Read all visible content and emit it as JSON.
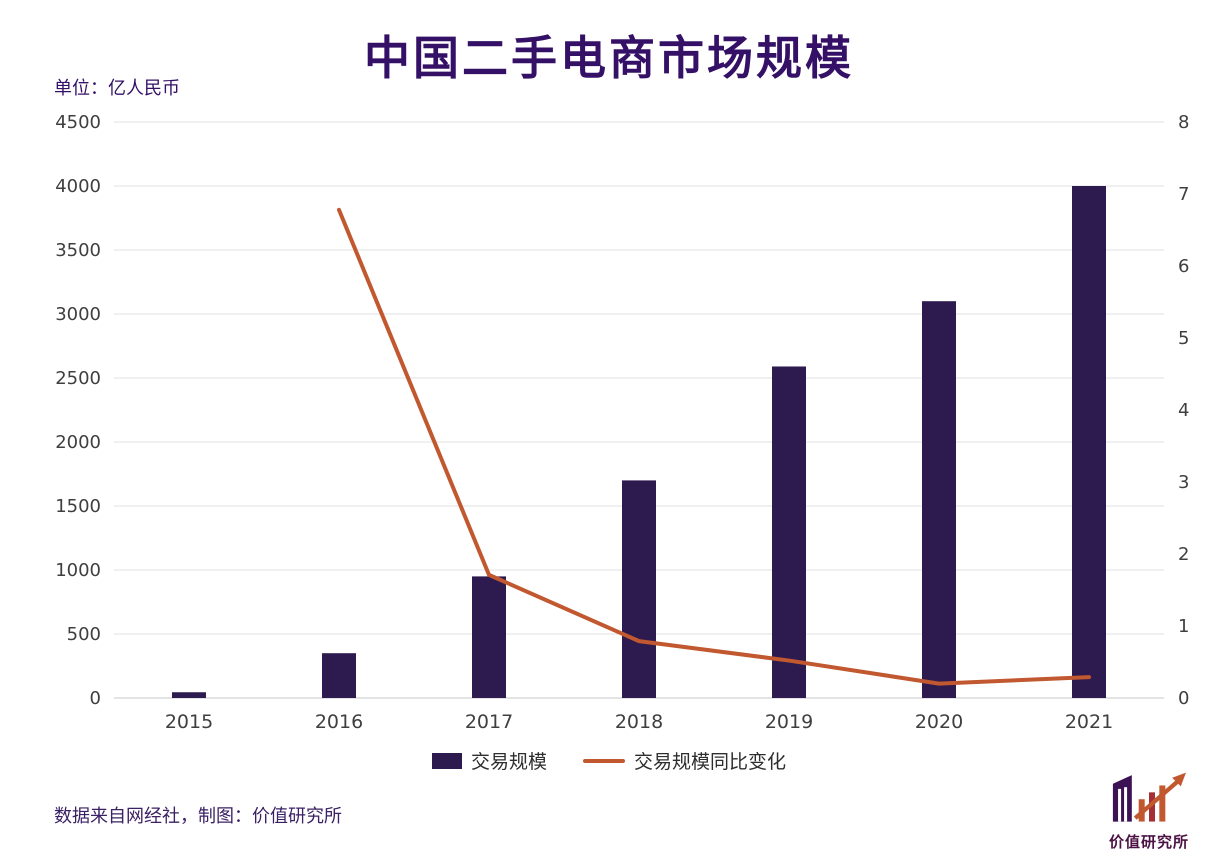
{
  "header": {
    "title": "中国二手电商市场规模",
    "unit_label": "单位：亿人民币"
  },
  "chart_data": {
    "type": "bar+line",
    "title": "中国二手电商市场规模",
    "unit": "亿人民币",
    "categories": [
      "2015",
      "2016",
      "2017",
      "2018",
      "2019",
      "2020",
      "2021"
    ],
    "series": [
      {
        "name": "交易规模",
        "type": "bar",
        "axis": "left",
        "color": "#2d1a4f",
        "values": [
          45,
          350,
          950,
          1700,
          2590,
          3100,
          4000
        ]
      },
      {
        "name": "交易规模同比变化",
        "type": "line",
        "axis": "right",
        "color": "#c1582f",
        "values": [
          null,
          6.78,
          1.71,
          0.79,
          0.52,
          0.2,
          0.29
        ]
      }
    ],
    "left_axis": {
      "min": 0,
      "max": 4500,
      "step": 500,
      "ticks": [
        "0",
        "500",
        "1000",
        "1500",
        "2000",
        "2500",
        "3000",
        "3500",
        "4000",
        "4500"
      ]
    },
    "right_axis": {
      "min": 0,
      "max": 8,
      "step": 1,
      "ticks": [
        "0",
        "1",
        "2",
        "3",
        "4",
        "5",
        "6",
        "7",
        "8"
      ]
    },
    "grid": true,
    "legend_position": "bottom"
  },
  "legend": {
    "items": [
      {
        "label": "交易规模",
        "type": "bar",
        "color": "#2d1a4f"
      },
      {
        "label": "交易规模同比变化",
        "type": "line",
        "color": "#c1582f"
      }
    ]
  },
  "footer": {
    "source_text": "数据来自网经社，制图：价值研究所",
    "logo_text": "价值研究所"
  },
  "colors": {
    "title": "#341066",
    "bar": "#2d1a4f",
    "line": "#c1582f",
    "axis_text": "#3f3f3f",
    "grid": "#e2e2e2",
    "grid_zero": "#c9c9c9",
    "footer_text": "#3b2064",
    "logo_text": "#4c1245"
  }
}
